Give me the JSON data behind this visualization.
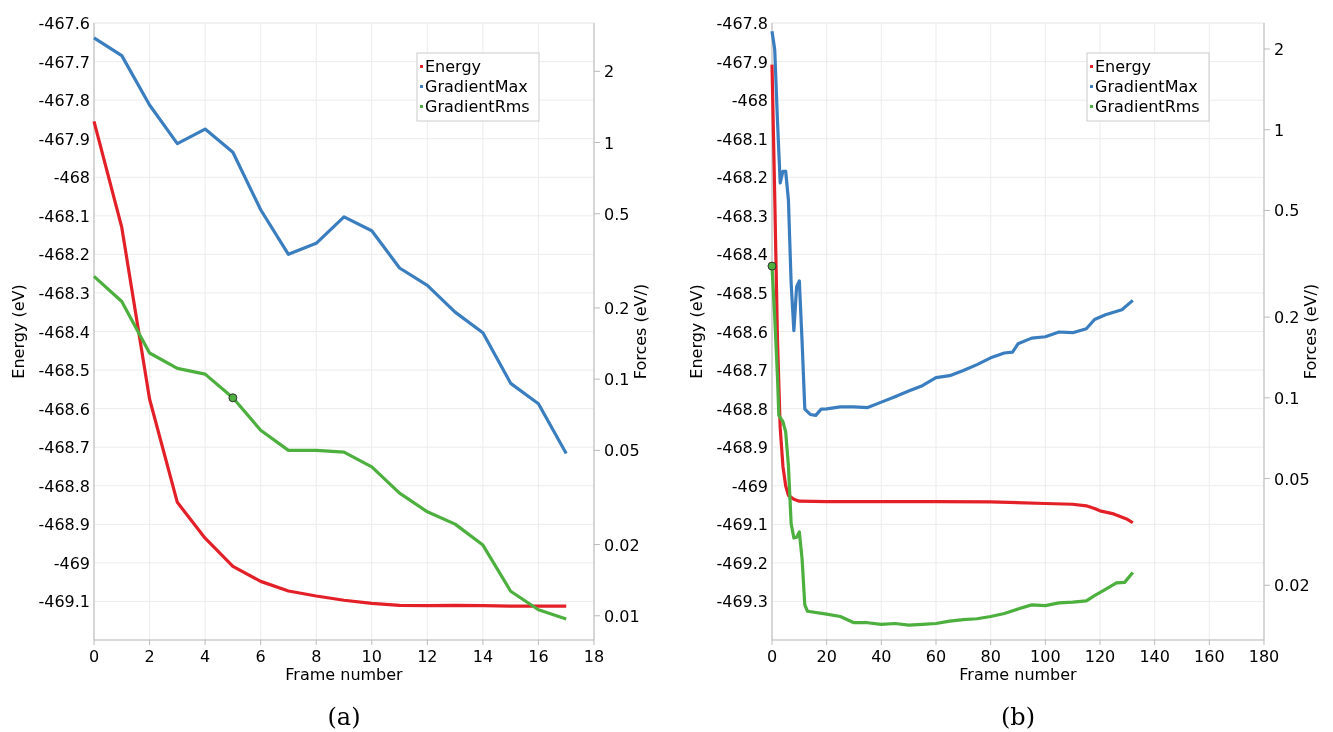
{
  "chart_data": [
    {
      "type": "line",
      "xlabel": "Frame number",
      "ylabel": "Energy (eV)",
      "y2label": "Forces (eV/)",
      "annotations": [
        "(a)"
      ],
      "legend": "top right",
      "grid": true,
      "log": "y2",
      "xlim": [
        0,
        18
      ],
      "xticks": [
        0,
        2,
        4,
        6,
        8,
        10,
        12,
        14,
        16,
        18
      ],
      "ylim": [
        -469.2,
        -467.6
      ],
      "yticks": [
        -467.6,
        -467.7,
        -467.8,
        -467.9,
        -468,
        -468.1,
        -468.2,
        -468.3,
        -468.4,
        -468.5,
        -468.6,
        -468.7,
        -468.8,
        -468.9,
        -469,
        -469.1
      ],
      "y2lim": [
        0.0079,
        3.2
      ],
      "y2ticks": [
        2,
        1,
        0.5,
        0.2,
        0.1,
        0.05,
        0.02,
        0.01
      ],
      "series": [
        {
          "name": "Energy",
          "color": "#e32028",
          "x": [
            0,
            1,
            2,
            3,
            4,
            5,
            6,
            7,
            8,
            9,
            10,
            11,
            12,
            13,
            14,
            15,
            16,
            17
          ],
          "values": [
            -467.855,
            -468.13,
            -468.575,
            -468.843,
            -468.936,
            -469.009,
            -469.048,
            -469.073,
            -469.086,
            -469.097,
            -469.105,
            -469.11,
            -469.111,
            -469.11,
            -469.111,
            -469.112,
            -469.112,
            -469.112
          ]
        },
        {
          "name": "GradientMax",
          "color": "#3a7ebf",
          "axis": "y2",
          "x": [
            0,
            1,
            2,
            3,
            4,
            5,
            6,
            7,
            8,
            9,
            10,
            11,
            12,
            13,
            14,
            15,
            16,
            17
          ],
          "values": [
            2.77,
            2.33,
            1.44,
            0.99,
            1.14,
            0.91,
            0.52,
            0.337,
            0.375,
            0.485,
            0.424,
            0.295,
            0.249,
            0.192,
            0.157,
            0.096,
            0.0787,
            0.0485
          ]
        },
        {
          "name": "GradientRms",
          "color": "#4caf3e",
          "axis": "y2",
          "x": [
            0,
            1,
            2,
            3,
            4,
            5,
            6,
            7,
            8,
            9,
            10,
            11,
            12,
            13,
            14,
            15,
            16,
            17
          ],
          "values": [
            0.272,
            0.213,
            0.129,
            0.111,
            0.105,
            0.0834,
            0.0608,
            0.05,
            0.05,
            0.0492,
            0.0426,
            0.033,
            0.0275,
            0.0244,
            0.0199,
            0.0127,
            0.0106,
            0.0097
          ]
        },
        {
          "type": "scatter",
          "marker": "circle",
          "color": "#4caf3e",
          "axis": "y2",
          "x": [
            5
          ],
          "values": [
            0.0834
          ]
        }
      ]
    },
    {
      "type": "line",
      "xlabel": "Frame number",
      "ylabel": "Energy (eV)",
      "y2label": "Forces (eV/)",
      "annotations": [
        "(b)"
      ],
      "legend": "top right",
      "grid": true,
      "log": "y2",
      "xlim": [
        0,
        180
      ],
      "xticks": [
        0,
        20,
        40,
        60,
        80,
        100,
        120,
        140,
        160,
        180
      ],
      "ylim": [
        -469.4,
        -467.8
      ],
      "yticks": [
        -467.8,
        -467.9,
        -468,
        -468.1,
        -468.2,
        -468.3,
        -468.4,
        -468.5,
        -468.6,
        -468.7,
        -468.8,
        -468.9,
        -469,
        -469.1,
        -469.2,
        -469.3
      ],
      "y2lim": [
        0.0125,
        2.5
      ],
      "y2ticks": [
        2,
        1,
        0.5,
        0.2,
        0.1,
        0.05,
        0.02
      ],
      "series": [
        {
          "name": "Energy",
          "color": "#e32028",
          "x": [
            0,
            1,
            2,
            3,
            4,
            5,
            6,
            8,
            10,
            20,
            40,
            60,
            80,
            100,
            110,
            115,
            118,
            120,
            125,
            130,
            132
          ],
          "values": [
            -467.908,
            -468.25,
            -468.62,
            -468.85,
            -468.95,
            -469.0,
            -469.025,
            -469.035,
            -469.04,
            -469.041,
            -469.041,
            -469.041,
            -469.042,
            -469.046,
            -469.048,
            -469.052,
            -469.059,
            -469.065,
            -469.073,
            -469.087,
            -469.096
          ]
        },
        {
          "name": "GradientMax",
          "color": "#3a7ebf",
          "axis": "y2",
          "x": [
            0,
            1,
            2,
            3,
            4,
            5,
            6,
            7,
            8,
            9,
            10,
            11,
            12,
            14,
            16,
            18,
            20,
            25,
            30,
            35,
            40,
            45,
            50,
            55,
            60,
            65,
            70,
            75,
            80,
            85,
            88,
            90,
            95,
            100,
            105,
            110,
            115,
            118,
            122,
            128,
            132
          ],
          "values": [
            2.33,
            1.99,
            1.08,
            0.633,
            0.7,
            0.7,
            0.548,
            0.268,
            0.178,
            0.259,
            0.273,
            0.163,
            0.0908,
            0.0867,
            0.086,
            0.0908,
            0.091,
            0.0925,
            0.0925,
            0.092,
            0.0964,
            0.101,
            0.106,
            0.111,
            0.119,
            0.121,
            0.1265,
            0.133,
            0.141,
            0.147,
            0.148,
            0.159,
            0.167,
            0.169,
            0.176,
            0.175,
            0.181,
            0.196,
            0.204,
            0.213,
            0.231
          ]
        },
        {
          "name": "GradientRms",
          "color": "#4caf3e",
          "axis": "y2",
          "x": [
            0,
            1,
            2,
            2.5,
            4,
            5,
            6,
            7,
            8,
            9,
            10,
            11,
            12,
            13,
            20,
            25,
            30,
            35,
            40,
            45,
            50,
            55,
            60,
            65,
            70,
            75,
            80,
            85,
            90,
            95,
            100,
            105,
            110,
            115,
            118,
            122,
            126,
            129,
            132
          ],
          "values": [
            0.31,
            0.2,
            0.12,
            0.086,
            0.0815,
            0.0746,
            0.056,
            0.034,
            0.03,
            0.0302,
            0.0316,
            0.0251,
            0.0169,
            0.016,
            0.0156,
            0.0153,
            0.0145,
            0.0145,
            0.0143,
            0.0144,
            0.0142,
            0.0143,
            0.0144,
            0.0147,
            0.0149,
            0.015,
            0.0153,
            0.0157,
            0.0163,
            0.0169,
            0.0168,
            0.0172,
            0.0173,
            0.0175,
            0.0183,
            0.0193,
            0.0204,
            0.0205,
            0.0223
          ]
        },
        {
          "type": "scatter",
          "marker": "circle",
          "color": "#4caf3e",
          "axis": "y2",
          "x": [
            0
          ],
          "values": [
            0.31
          ]
        }
      ]
    }
  ]
}
